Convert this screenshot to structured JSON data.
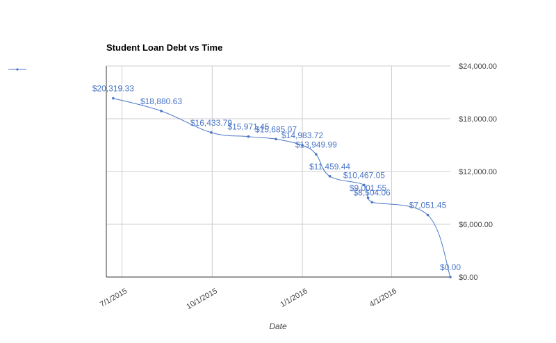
{
  "chart_data": {
    "type": "line",
    "title": "Student Loan Debt vs Time",
    "xlabel": "Date",
    "ylabel": "",
    "x_ticks": [
      "7/1/2015",
      "10/1/2015",
      "1/1/2016",
      "4/1/2016"
    ],
    "y_ticks": [
      "$0.00",
      "$6,000.00",
      "$12,000.00",
      "$18,000.00",
      "$24,000.00"
    ],
    "ylim": [
      0,
      24000
    ],
    "xlim": [
      "2015-06-15",
      "2016-05-31"
    ],
    "y_axis_side": "right",
    "grid": true,
    "legend": "left",
    "series_color": "#4a76c8",
    "series": [
      {
        "name": "",
        "points": [
          {
            "x": "2015-06-22",
            "y": 20319.33,
            "label": "$20,319.33"
          },
          {
            "x": "2015-08-10",
            "y": 18880.63,
            "label": "$18,880.63"
          },
          {
            "x": "2015-09-30",
            "y": 16433.79,
            "label": "$16,433.79"
          },
          {
            "x": "2015-11-07",
            "y": 15971.45,
            "label": "$15,971.45"
          },
          {
            "x": "2015-12-05",
            "y": 15685.07,
            "label": "$15,685.07"
          },
          {
            "x": "2016-01-01",
            "y": 14983.72,
            "label": "$14,983.72"
          },
          {
            "x": "2016-01-15",
            "y": 13949.99,
            "label": "$13,949.99"
          },
          {
            "x": "2016-01-29",
            "y": 11459.44,
            "label": "$11,459.44"
          },
          {
            "x": "2016-03-04",
            "y": 10467.05,
            "label": "$10,467.05"
          },
          {
            "x": "2016-03-08",
            "y": 9001.55,
            "label": "$9,001.55"
          },
          {
            "x": "2016-03-12",
            "y": 8504.06,
            "label": "$8,504.06"
          },
          {
            "x": "2016-05-08",
            "y": 7051.45,
            "label": "$7,051.45"
          },
          {
            "x": "2016-05-31",
            "y": 0,
            "label": "$0.00"
          }
        ]
      }
    ]
  }
}
